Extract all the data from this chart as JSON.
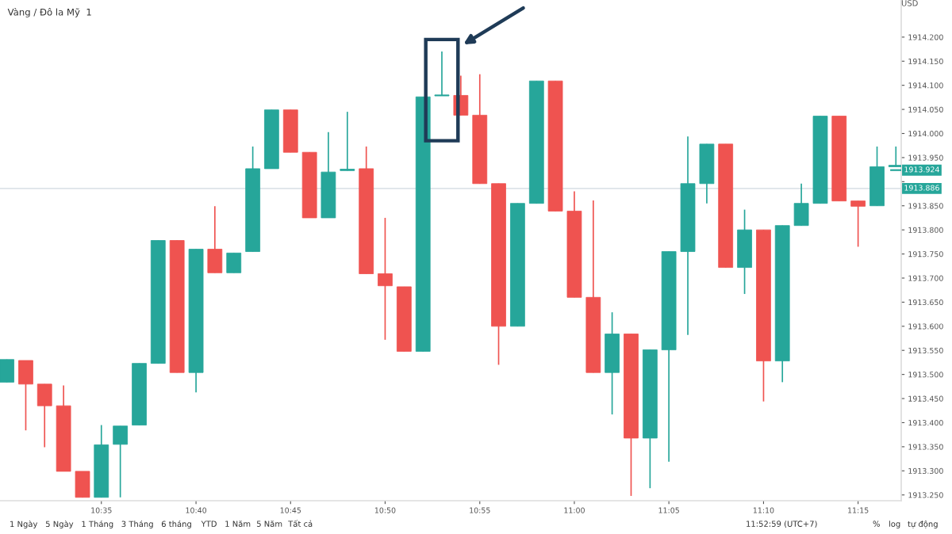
{
  "chart_data": {
    "type": "candlestick",
    "title": "Vàng / Đô la Mỹ  1",
    "ylabel": "USD",
    "x": [
      10.5,
      10.5167,
      10.5333,
      10.55,
      10.5667,
      10.5833,
      10.6,
      10.6167,
      10.6333,
      10.65,
      10.6667,
      10.6833,
      10.7,
      10.7167,
      10.7333,
      10.75,
      10.7667,
      10.7833,
      10.8,
      10.8167,
      10.8333,
      10.85,
      10.8667,
      10.8833,
      10.9,
      10.9167,
      10.9333,
      10.95,
      10.9667,
      10.9833,
      11.0,
      11.0167,
      11.0333,
      11.05,
      11.0667,
      11.0833,
      11.1,
      11.1167,
      11.1333,
      11.15,
      11.1667,
      11.1833,
      11.2,
      11.2167,
      11.2333,
      11.25,
      11.2667,
      11.2833
    ],
    "ohlc": [
      [
        1913.484,
        1913.531,
        1913.484,
        1913.531
      ],
      [
        1913.529,
        1913.529,
        1913.384,
        1913.48
      ],
      [
        1913.48,
        1913.48,
        1913.349,
        1913.435
      ],
      [
        1913.435,
        1913.477,
        1913.299,
        1913.299
      ],
      [
        1913.299,
        1913.299,
        1913.245,
        1913.245
      ],
      [
        1913.245,
        1913.395,
        1913.245,
        1913.354
      ],
      [
        1913.355,
        1913.393,
        1913.245,
        1913.393
      ],
      [
        1913.395,
        1913.523,
        1913.395,
        1913.523
      ],
      [
        1913.523,
        1913.778,
        1913.523,
        1913.778
      ],
      [
        1913.778,
        1913.778,
        1913.504,
        1913.504
      ],
      [
        1913.504,
        1913.76,
        1913.463,
        1913.76
      ],
      [
        1913.76,
        1913.849,
        1913.711,
        1913.711
      ],
      [
        1913.711,
        1913.752,
        1913.711,
        1913.752
      ],
      [
        1913.755,
        1913.973,
        1913.755,
        1913.927
      ],
      [
        1913.927,
        1914.049,
        1913.927,
        1914.049
      ],
      [
        1914.049,
        1914.049,
        1913.961,
        1913.961
      ],
      [
        1913.961,
        1913.961,
        1913.825,
        1913.825
      ],
      [
        1913.825,
        1914.003,
        1913.825,
        1913.92
      ],
      [
        1913.923,
        1914.045,
        1913.923,
        1913.926
      ],
      [
        1913.927,
        1913.973,
        1913.709,
        1913.709
      ],
      [
        1913.709,
        1913.825,
        1913.572,
        1913.684
      ],
      [
        1913.682,
        1913.682,
        1913.548,
        1913.548
      ],
      [
        1913.548,
        1914.076,
        1913.548,
        1914.076
      ],
      [
        1914.078,
        1914.17,
        1914.078,
        1914.079
      ],
      [
        1914.079,
        1914.12,
        1914.038,
        1914.038
      ],
      [
        1914.038,
        1914.123,
        1913.896,
        1913.896
      ],
      [
        1913.896,
        1913.896,
        1913.52,
        1913.6
      ],
      [
        1913.6,
        1913.855,
        1913.6,
        1913.855
      ],
      [
        1913.855,
        1914.109,
        1913.855,
        1914.109
      ],
      [
        1914.109,
        1914.109,
        1913.839,
        1913.839
      ],
      [
        1913.839,
        1913.88,
        1913.66,
        1913.66
      ],
      [
        1913.66,
        1913.861,
        1913.504,
        1913.504
      ],
      [
        1913.504,
        1913.629,
        1913.417,
        1913.584
      ],
      [
        1913.584,
        1913.584,
        1913.248,
        1913.368
      ],
      [
        1913.368,
        1913.551,
        1913.264,
        1913.551
      ],
      [
        1913.551,
        1913.755,
        1913.319,
        1913.755
      ],
      [
        1913.755,
        1913.994,
        1913.582,
        1913.896
      ],
      [
        1913.896,
        1913.978,
        1913.855,
        1913.978
      ],
      [
        1913.978,
        1913.978,
        1913.722,
        1913.722
      ],
      [
        1913.722,
        1913.842,
        1913.667,
        1913.8
      ],
      [
        1913.8,
        1913.8,
        1913.444,
        1913.528
      ],
      [
        1913.528,
        1913.809,
        1913.484,
        1913.809
      ],
      [
        1913.809,
        1913.896,
        1913.809,
        1913.855
      ],
      [
        1913.855,
        1914.036,
        1913.855,
        1914.036
      ],
      [
        1914.036,
        1914.036,
        1913.86,
        1913.86
      ],
      [
        1913.86,
        1913.86,
        1913.765,
        1913.849
      ],
      [
        1913.85,
        1913.973,
        1913.85,
        1913.931
      ],
      [
        1913.931,
        1913.973,
        1913.931,
        1913.934
      ]
    ],
    "colors": [
      "#26a69a",
      "#ef5350",
      "#ef5350",
      "#ef5350",
      "#ef5350",
      "#26a69a",
      "#26a69a",
      "#26a69a",
      "#26a69a",
      "#ef5350",
      "#26a69a",
      "#ef5350",
      "#26a69a",
      "#26a69a",
      "#26a69a",
      "#ef5350",
      "#ef5350",
      "#26a69a",
      "#26a69a",
      "#ef5350",
      "#ef5350",
      "#ef5350",
      "#26a69a",
      "#26a69a",
      "#ef5350",
      "#ef5350",
      "#ef5350",
      "#26a69a",
      "#26a69a",
      "#ef5350",
      "#ef5350",
      "#ef5350",
      "#26a69a",
      "#ef5350",
      "#26a69a",
      "#26a69a",
      "#26a69a",
      "#26a69a",
      "#ef5350",
      "#26a69a",
      "#ef5350",
      "#26a69a",
      "#26a69a",
      "#26a69a",
      "#ef5350",
      "#ef5350",
      "#26a69a",
      "#26a69a"
    ],
    "xlim": [
      10.494,
      11.288
    ],
    "xticks": [
      {
        "value": 10.5833,
        "label": "10:35"
      },
      {
        "value": 10.6667,
        "label": "10:40"
      },
      {
        "value": 10.75,
        "label": "10:45"
      },
      {
        "value": 10.8333,
        "label": "10:50"
      },
      {
        "value": 10.9167,
        "label": "10:55"
      },
      {
        "value": 11.0,
        "label": "11:00"
      },
      {
        "value": 11.0833,
        "label": "11:05"
      },
      {
        "value": 11.1667,
        "label": "11:10"
      },
      {
        "value": 11.25,
        "label": "11:15"
      }
    ],
    "ylim": [
      1913.238,
      1914.277
    ],
    "yticks": [
      {
        "value": 1913.25,
        "label": "1913.250"
      },
      {
        "value": 1913.3,
        "label": "1913.300"
      },
      {
        "value": 1913.35,
        "label": "1913.350"
      },
      {
        "value": 1913.4,
        "label": "1913.400"
      },
      {
        "value": 1913.45,
        "label": "1913.450"
      },
      {
        "value": 1913.5,
        "label": "1913.500"
      },
      {
        "value": 1913.55,
        "label": "1913.550"
      },
      {
        "value": 1913.6,
        "label": "1913.600"
      },
      {
        "value": 1913.65,
        "label": "1913.650"
      },
      {
        "value": 1913.7,
        "label": "1913.700"
      },
      {
        "value": 1913.75,
        "label": "1913.750"
      },
      {
        "value": 1913.8,
        "label": "1913.800"
      },
      {
        "value": 1913.85,
        "label": "1913.850"
      },
      {
        "value": 1913.9,
        "label": null
      },
      {
        "value": 1913.95,
        "label": "1913.950"
      },
      {
        "value": 1914.0,
        "label": "1914.000"
      },
      {
        "value": 1914.05,
        "label": "1914.050"
      },
      {
        "value": 1914.1,
        "label": "1914.100"
      },
      {
        "value": 1914.15,
        "label": "1914.150"
      },
      {
        "value": 1914.2,
        "label": "1914.200"
      }
    ],
    "ref_lines": [
      {
        "axis": "y",
        "value": 1913.886,
        "label": "1913.886",
        "color": "#dde3e8"
      }
    ],
    "annotations": [
      {
        "text": "1913.924",
        "x": 11.2833,
        "y": 1913.924
      },
      "1 Ngày",
      "5 Ngày",
      "1 Tháng",
      "3 Tháng",
      "6 tháng",
      "YTD",
      "1 Năm",
      "5 Năm",
      "Tất cả",
      "11:52:59 (UTC+7)",
      "%",
      "log",
      "tự động"
    ],
    "grid": false
  }
}
